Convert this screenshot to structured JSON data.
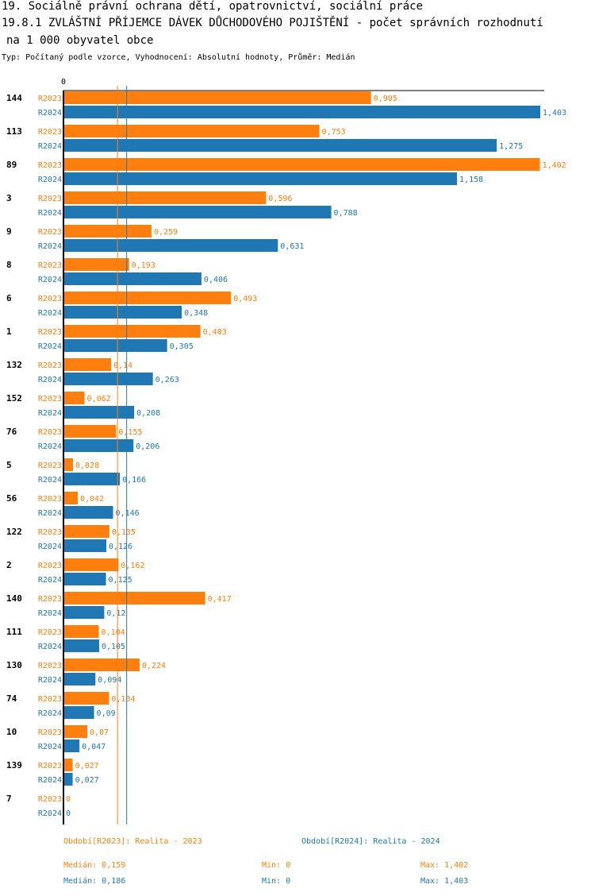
{
  "header": {
    "line1": "19. Sociálně právní ochrana dětí, opatrovnictví, sociální práce",
    "line2": "19.8.1 ZVLÁŠTNÍ PŘÍJEMCE DÁVEK DŮCHODOVÉHO POJIŠTĚNÍ - počet správních rozhodnutí",
    "line3": "na  1 000 obyvatel obce",
    "subtitle": "Typ: Počítaný podle vzorce, Vyhodnocení: Absolutní hodnoty, Průměr: Medián"
  },
  "colors": {
    "r2023": "#ff7f0e",
    "r2024": "#1f77b4"
  },
  "chart_data": {
    "type": "bar",
    "orientation": "horizontal",
    "axis_zero_label": "0",
    "xlim": [
      0,
      1.403
    ],
    "categories": [
      "144",
      "113",
      "89",
      "3",
      "9",
      "8",
      "6",
      "1",
      "132",
      "152",
      "76",
      "5",
      "56",
      "122",
      "2",
      "140",
      "111",
      "130",
      "74",
      "10",
      "139",
      "7"
    ],
    "series": [
      {
        "name": "R2023",
        "values": [
          0.905,
          0.753,
          1.402,
          0.596,
          0.259,
          0.193,
          0.493,
          0.403,
          0.14,
          0.062,
          0.155,
          0.028,
          0.042,
          0.135,
          0.162,
          0.417,
          0.104,
          0.224,
          0.134,
          0.07,
          0.027,
          0
        ],
        "labels": [
          "0,905",
          "0,753",
          "1,402",
          "0,596",
          "0,259",
          "0,193",
          "0,493",
          "0,403",
          "0,14",
          "0,062",
          "0,155",
          "0,028",
          "0,042",
          "0,135",
          "0,162",
          "0,417",
          "0,104",
          "0,224",
          "0,134",
          "0,07",
          "0,027",
          "0"
        ]
      },
      {
        "name": "R2024",
        "values": [
          1.403,
          1.275,
          1.158,
          0.788,
          0.631,
          0.406,
          0.348,
          0.305,
          0.263,
          0.208,
          0.206,
          0.166,
          0.146,
          0.126,
          0.125,
          0.12,
          0.105,
          0.094,
          0.09,
          0.047,
          0.027,
          0
        ],
        "labels": [
          "1,403",
          "1,275",
          "1,158",
          "0,788",
          "0,631",
          "0,406",
          "0,348",
          "0,305",
          "0,263",
          "0,208",
          "0,206",
          "0,166",
          "0,146",
          "0,126",
          "0,125",
          "0,12",
          "0,105",
          "0,094",
          "0,09",
          "0,047",
          "0,027",
          "0"
        ]
      }
    ],
    "medians": {
      "R2023": 0.159,
      "R2024": 0.186
    }
  },
  "legend": {
    "r2023": "Období[R2023]: Realita - 2023",
    "r2024": "Období[R2024]: Realita - 2024"
  },
  "stats": {
    "r2023": {
      "median": "Medián: 0,159",
      "min": "Min: 0",
      "max": "Max: 1,402"
    },
    "r2024": {
      "median": "Medián: 0,186",
      "min": "Min: 0",
      "max": "Max: 1,403"
    }
  }
}
